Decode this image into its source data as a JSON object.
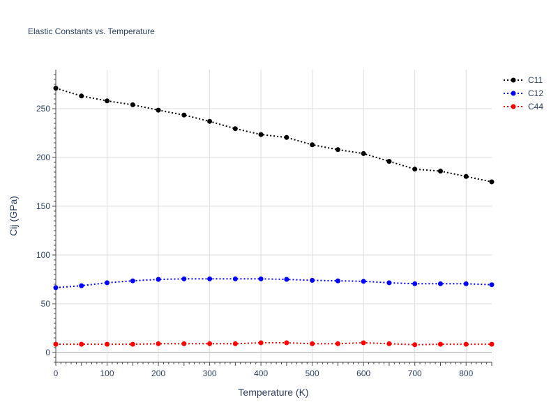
{
  "chart_data": {
    "type": "line",
    "title": "Elastic Constants vs. Temperature",
    "xlabel": "Temperature (K)",
    "ylabel": "Cij (GPa)",
    "xlim": [
      0,
      850
    ],
    "ylim": [
      -10,
      290
    ],
    "x_ticks": [
      0,
      100,
      200,
      300,
      400,
      500,
      600,
      700,
      800
    ],
    "y_ticks": [
      0,
      50,
      100,
      150,
      200,
      250
    ],
    "grid": true,
    "legend_position": "top-right",
    "x": [
      0,
      50,
      100,
      150,
      200,
      250,
      300,
      350,
      400,
      450,
      500,
      550,
      600,
      650,
      700,
      750,
      800,
      850
    ],
    "series": [
      {
        "name": "C11",
        "color": "#000000",
        "values": [
          271,
          263,
          258,
          254,
          248.5,
          243.5,
          237,
          229.5,
          223.5,
          220.5,
          213,
          208,
          204,
          196,
          188,
          186,
          180.5,
          175
        ]
      },
      {
        "name": "C12",
        "color": "#0000ff",
        "values": [
          66.5,
          68.5,
          71.5,
          73.5,
          75,
          75.5,
          75.5,
          75.5,
          75.5,
          75,
          74,
          73.5,
          73,
          71.5,
          70.5,
          70.5,
          70.5,
          69.5
        ]
      },
      {
        "name": "C44",
        "color": "#ff0000",
        "values": [
          8.5,
          8.5,
          8.5,
          8.5,
          9,
          9,
          9,
          9,
          10,
          10,
          9,
          9,
          10,
          9,
          8,
          8.5,
          8.5,
          8.5
        ]
      }
    ]
  }
}
